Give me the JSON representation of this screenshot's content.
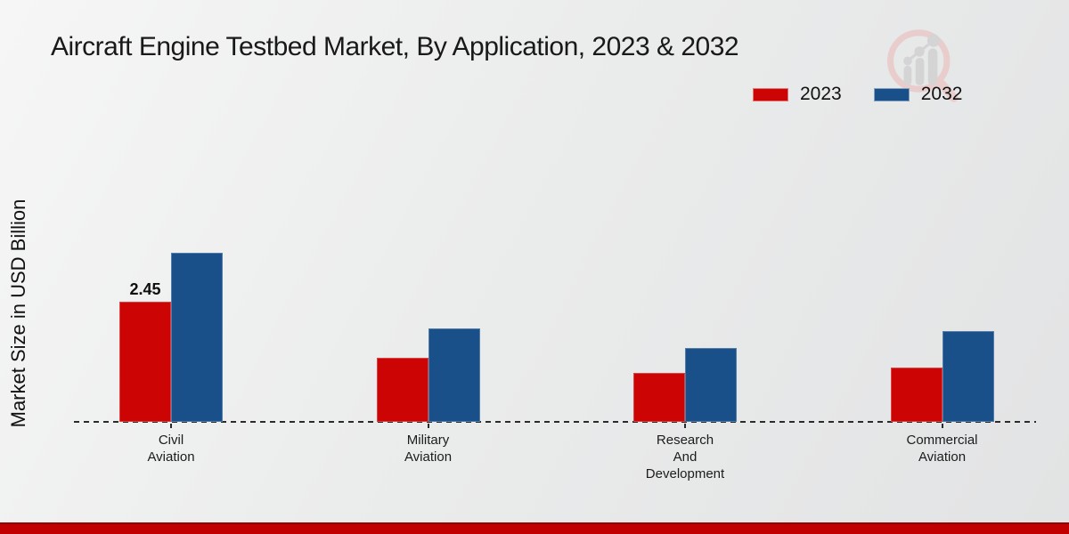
{
  "title": "Aircraft Engine Testbed Market, By Application, 2023 & 2032",
  "y_axis_label": "Market Size in USD Billion",
  "legend": {
    "position": "top-right",
    "items": [
      {
        "label": "2023",
        "color": "#cc0404"
      },
      {
        "label": "2032",
        "color": "#1a5089"
      }
    ]
  },
  "logo": {
    "name": "market-research-future-watermark"
  },
  "footer": {
    "stripe_color": "#c10101"
  },
  "chart_data": {
    "type": "bar",
    "title": "Aircraft Engine Testbed Market, By Application, 2023 & 2032",
    "ylabel": "Market Size in USD Billion",
    "xlabel": "",
    "unit": "USD Billion",
    "grid": false,
    "legend_position": "top-right",
    "ylim": [
      0,
      3.6
    ],
    "baseline": {
      "style": "dashed",
      "color": "#2b2b2b"
    },
    "categories": [
      "Civil Aviation",
      "Military Aviation",
      "Research And Development",
      "Commercial Aviation"
    ],
    "category_label_lines": [
      [
        "Civil",
        "Aviation"
      ],
      [
        "Military",
        "Aviation"
      ],
      [
        "Research",
        "And",
        "Development"
      ],
      [
        "Commercial",
        "Aviation"
      ]
    ],
    "series": [
      {
        "name": "2023",
        "color": "#cc0404",
        "values": [
          2.45,
          1.3,
          1.0,
          1.1
        ]
      },
      {
        "name": "2032",
        "color": "#1a5089",
        "values": [
          3.45,
          1.9,
          1.5,
          1.85
        ]
      }
    ],
    "data_labels": [
      {
        "series": "2023",
        "category": "Civil Aviation",
        "value": "2.45"
      }
    ]
  }
}
